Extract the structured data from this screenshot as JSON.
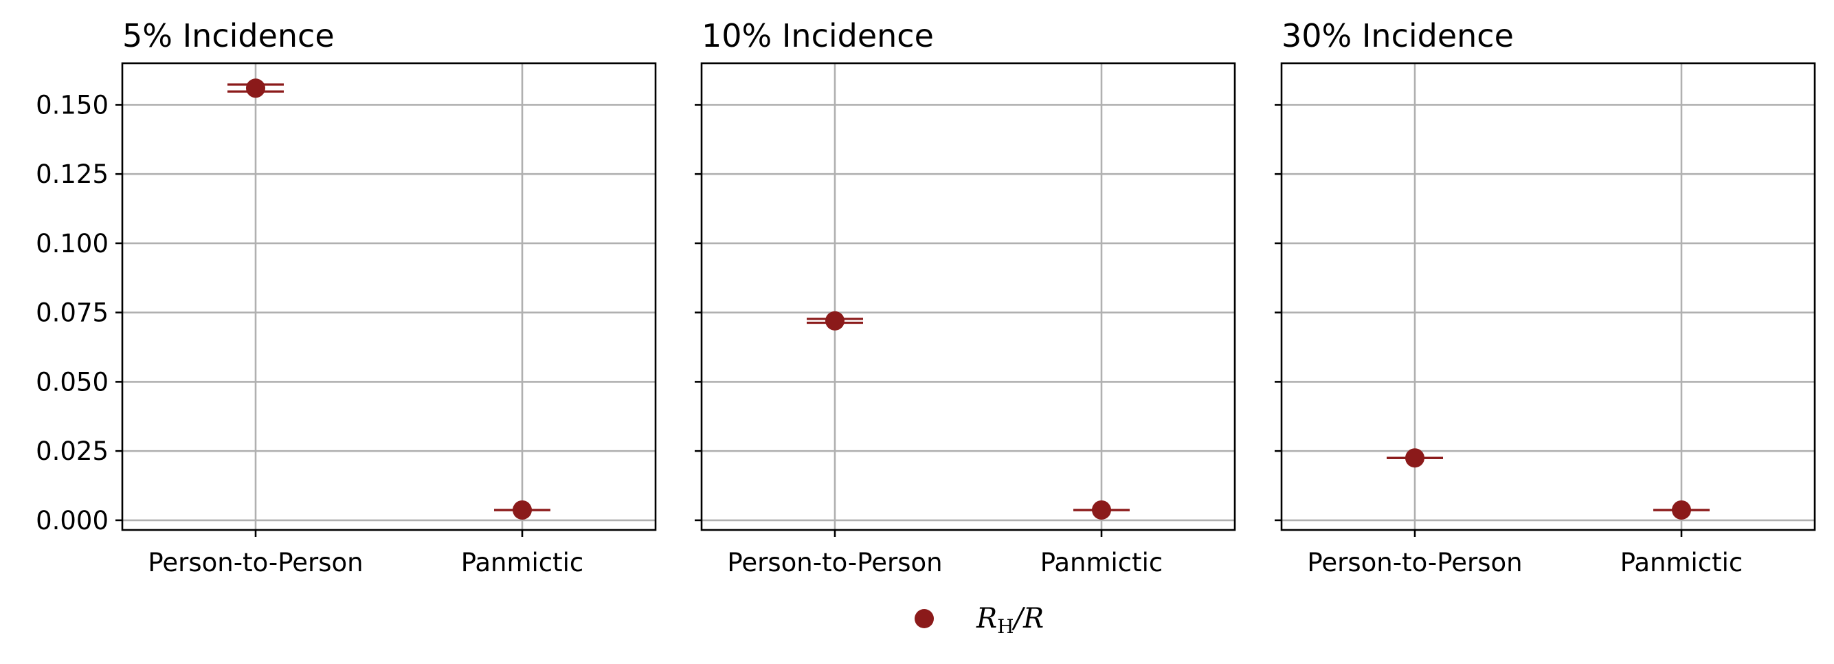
{
  "chart_data": {
    "type": "scatter",
    "y_axis": {
      "range": [
        -0.0035,
        0.165
      ],
      "ticks": [
        0.0,
        0.025,
        0.05,
        0.075,
        0.1,
        0.125,
        0.15
      ],
      "tick_labels": [
        "0.000",
        "0.025",
        "0.050",
        "0.075",
        "0.100",
        "0.125",
        "0.150"
      ]
    },
    "categories": [
      "Person-to-Person",
      "Panmictic"
    ],
    "panels": [
      {
        "title": "5% Incidence",
        "points": [
          {
            "category": "Person-to-Person",
            "value": 0.156,
            "err_low": 0.1548,
            "err_high": 0.1573
          },
          {
            "category": "Panmictic",
            "value": 0.0037,
            "err_low": 0.0037,
            "err_high": 0.0037
          }
        ]
      },
      {
        "title": "10% Incidence",
        "points": [
          {
            "category": "Person-to-Person",
            "value": 0.072,
            "err_low": 0.0713,
            "err_high": 0.0727
          },
          {
            "category": "Panmictic",
            "value": 0.0037,
            "err_low": 0.0037,
            "err_high": 0.0037
          }
        ]
      },
      {
        "title": "30% Incidence",
        "points": [
          {
            "category": "Person-to-Person",
            "value": 0.0225,
            "err_low": 0.0225,
            "err_high": 0.0225
          },
          {
            "category": "Panmictic",
            "value": 0.0037,
            "err_low": 0.0037,
            "err_high": 0.0037
          }
        ]
      }
    ],
    "series": [
      {
        "name_main": "R",
        "name_sub": "H",
        "name_suffix": "/R",
        "color": "#8b1a1a"
      }
    ],
    "grid": true,
    "legend_position": "bottom-center",
    "shared_y": true
  }
}
